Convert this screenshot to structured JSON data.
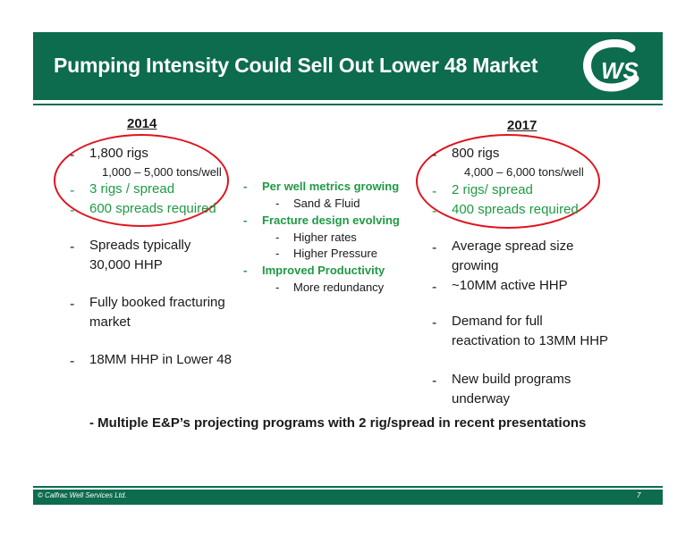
{
  "header": {
    "title": "Pumping Intensity Could Sell Out Lower 48 Market",
    "logo_text": "CWS"
  },
  "left": {
    "year": "2014",
    "rigs": "1,800 rigs",
    "rigs_sub": "1,000 – 5,000 tons/well",
    "rigs_per_spread": "3 rigs / spread",
    "spreads_required": "600 spreads required",
    "spreads_typically_1": "Spreads typically",
    "spreads_typically_2": "30,000 HHP",
    "fully_booked_1": "Fully booked fracturing",
    "fully_booked_2": "market",
    "hhp": "18MM HHP in Lower 48"
  },
  "middle": {
    "per_well": "Per well metrics growing",
    "sand_fluid": "Sand & Fluid",
    "fracture_design": "Fracture design evolving",
    "higher_rates": "Higher rates",
    "higher_pressure": "Higher Pressure",
    "improved_productivity": "Improved Productivity",
    "more_redundancy": "More redundancy"
  },
  "right": {
    "year": "2017",
    "rigs": "800 rigs",
    "rigs_sub": "4,000 – 6,000 tons/well",
    "rigs_per_spread": "2 rigs/ spread",
    "spreads_required": "400 spreads required",
    "avg_spread_1": "Average spread size",
    "avg_spread_2": "growing",
    "active_hhp": "~10MM active HHP",
    "demand_1": "Demand for full",
    "demand_2": "reactivation to 13MM HHP",
    "new_build_1": "New build programs",
    "new_build_2": "underway"
  },
  "footnote": "- Multiple E&P’s projecting programs with 2 rig/spread in recent presentations",
  "footer": {
    "copyright": "© Calfrac Well Services Ltd.",
    "page_number": "7"
  },
  "colors": {
    "brand_green": "#0d6b4e",
    "highlight_green": "#1f9a44",
    "circle_red": "#e0141e"
  }
}
